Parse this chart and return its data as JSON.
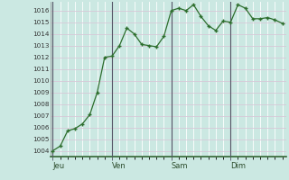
{
  "background_color": "#cbe8e2",
  "grid_major_color": "#d8c8d8",
  "grid_minor_color": "#ffffff",
  "line_color": "#2d6e2d",
  "marker_color": "#2d6e2d",
  "ylabel_values": [
    1004,
    1005,
    1006,
    1007,
    1008,
    1009,
    1010,
    1011,
    1012,
    1013,
    1014,
    1015,
    1016
  ],
  "ylim": [
    1003.5,
    1016.75
  ],
  "day_labels": [
    "Jeu",
    "Ven",
    "Sam",
    "Dim"
  ],
  "day_positions": [
    0,
    8,
    16,
    24
  ],
  "xlim": [
    -0.3,
    31.5
  ],
  "x_values": [
    0,
    1,
    2,
    3,
    4,
    5,
    6,
    7,
    8,
    9,
    10,
    11,
    12,
    13,
    14,
    15,
    16,
    17,
    18,
    19,
    20,
    21,
    22,
    23,
    24,
    25,
    26,
    27,
    28,
    29,
    30,
    31
  ],
  "y_values": [
    1004.0,
    1004.4,
    1005.7,
    1005.9,
    1006.3,
    1007.1,
    1009.0,
    1012.0,
    1012.1,
    1013.0,
    1014.5,
    1014.0,
    1013.1,
    1013.0,
    1012.9,
    1013.8,
    1016.0,
    1016.2,
    1016.0,
    1016.5,
    1015.5,
    1014.7,
    1014.3,
    1015.1,
    1015.0,
    1016.5,
    1016.2,
    1015.3,
    1015.3,
    1015.4,
    1015.2,
    1014.9
  ],
  "vline_color": "#555566",
  "spine_color": "#336633",
  "ylabel_fontsize": 5.2,
  "xlabel_fontsize": 6.0
}
